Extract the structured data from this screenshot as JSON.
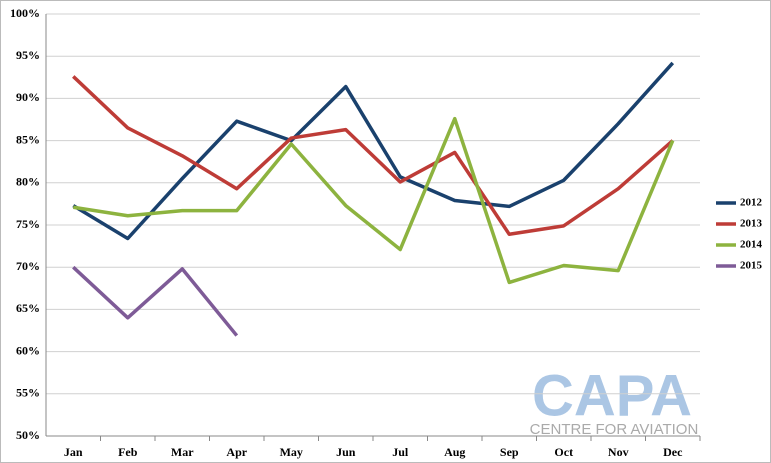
{
  "chart_data": {
    "type": "line",
    "categories": [
      "Jan",
      "Feb",
      "Mar",
      "Apr",
      "May",
      "Jun",
      "Jul",
      "Aug",
      "Sep",
      "Oct",
      "Nov",
      "Dec"
    ],
    "series": [
      {
        "name": "2012",
        "color": "#1a416d",
        "values": [
          77.3,
          73.4,
          80.5,
          87.3,
          85.0,
          91.4,
          80.7,
          77.9,
          77.2,
          80.3,
          87.0,
          94.2
        ]
      },
      {
        "name": "2013",
        "color": "#be3c37",
        "values": [
          92.6,
          86.5,
          83.2,
          79.3,
          85.3,
          86.3,
          80.1,
          83.6,
          73.9,
          74.9,
          79.3,
          85.0
        ]
      },
      {
        "name": "2014",
        "color": "#8db33f",
        "values": [
          77.1,
          76.1,
          76.7,
          76.7,
          84.6,
          77.3,
          72.1,
          87.6,
          68.2,
          70.2,
          69.6,
          85.0
        ]
      },
      {
        "name": "2015",
        "color": "#7e5b97",
        "values": [
          70.0,
          64.0,
          69.8,
          61.9,
          null,
          null,
          null,
          null,
          null,
          null,
          null,
          null
        ]
      }
    ],
    "ylim": [
      50,
      100
    ],
    "yticks": [
      {
        "value": 50,
        "label": "50%"
      },
      {
        "value": 55,
        "label": "55%"
      },
      {
        "value": 60,
        "label": "60%"
      },
      {
        "value": 65,
        "label": "65%"
      },
      {
        "value": 70,
        "label": "70%"
      },
      {
        "value": 75,
        "label": "75%"
      },
      {
        "value": 80,
        "label": "80%"
      },
      {
        "value": 85,
        "label": "85%"
      },
      {
        "value": 90,
        "label": "90%"
      },
      {
        "value": 95,
        "label": "95%"
      },
      {
        "value": 100,
        "label": "100%"
      }
    ],
    "grid": true,
    "legend": "right",
    "watermark": {
      "logo": "CAPA",
      "subtitle": "CENTRE FOR AVIATION"
    }
  }
}
